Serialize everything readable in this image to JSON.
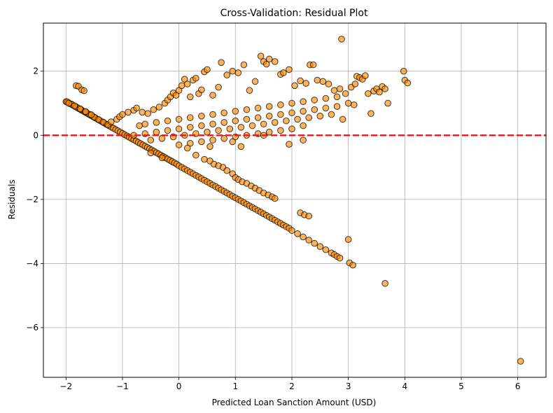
{
  "chart_data": {
    "type": "scatter",
    "title": "Cross-Validation: Residual Plot",
    "xlabel": "Predicted Loan Sanction Amount (USD)",
    "ylabel": "Residuals",
    "xlim": [
      -2.4,
      6.5
    ],
    "ylim": [
      -7.55,
      3.5
    ],
    "xticks": [
      -2,
      -1,
      0,
      1,
      2,
      3,
      4,
      5,
      6
    ],
    "yticks": [
      -6,
      -4,
      -2,
      0,
      2
    ],
    "xtick_labels": [
      "−2",
      "−1",
      "0",
      "1",
      "2",
      "3",
      "4",
      "5",
      "6"
    ],
    "ytick_labels": [
      "−6",
      "−4",
      "−2",
      "0",
      "2"
    ],
    "grid": true,
    "reference_line": {
      "y": 0,
      "style": "dashed",
      "color": "#e41a1c"
    },
    "marker": {
      "fill": "#ff8c00",
      "edge": "#000000",
      "alpha": 0.65
    },
    "series": [
      {
        "points": [
          [
            -2.0,
            1.05
          ],
          [
            -1.96,
            1.02
          ],
          [
            -1.92,
            0.98
          ],
          [
            -1.88,
            0.94
          ],
          [
            -1.84,
            0.9
          ],
          [
            -1.8,
            0.86
          ],
          [
            -1.76,
            0.82
          ],
          [
            -1.72,
            0.78
          ],
          [
            -1.68,
            0.74
          ],
          [
            -1.64,
            0.7
          ],
          [
            -1.6,
            0.66
          ],
          [
            -1.56,
            0.62
          ],
          [
            -1.52,
            0.58
          ],
          [
            -1.48,
            0.54
          ],
          [
            -1.44,
            0.5
          ],
          [
            -1.4,
            0.46
          ],
          [
            -1.36,
            0.42
          ],
          [
            -1.32,
            0.38
          ],
          [
            -1.28,
            0.34
          ],
          [
            -1.24,
            0.3
          ],
          [
            -1.2,
            0.26
          ],
          [
            -1.16,
            0.22
          ],
          [
            -1.12,
            0.18
          ],
          [
            -1.08,
            0.14
          ],
          [
            -1.04,
            0.1
          ],
          [
            -1.0,
            0.06
          ],
          [
            -0.96,
            0.02
          ],
          [
            -0.92,
            -0.02
          ],
          [
            -0.88,
            -0.06
          ],
          [
            -0.84,
            -0.1
          ],
          [
            -0.8,
            -0.14
          ],
          [
            -0.76,
            -0.18
          ],
          [
            -0.72,
            -0.22
          ],
          [
            -0.68,
            -0.26
          ],
          [
            -0.64,
            -0.3
          ],
          [
            -0.6,
            -0.34
          ],
          [
            -0.56,
            -0.38
          ],
          [
            -0.52,
            -0.42
          ],
          [
            -0.48,
            -0.46
          ],
          [
            -0.44,
            -0.5
          ],
          [
            -0.4,
            -0.54
          ],
          [
            -0.36,
            -0.58
          ],
          [
            -0.32,
            -0.62
          ],
          [
            -0.28,
            -0.66
          ],
          [
            -0.24,
            -0.7
          ],
          [
            -0.2,
            -0.74
          ],
          [
            -0.16,
            -0.78
          ],
          [
            -0.12,
            -0.82
          ],
          [
            -0.08,
            -0.86
          ],
          [
            -0.04,
            -0.9
          ],
          [
            0.0,
            -0.95
          ],
          [
            0.05,
            -1.0
          ],
          [
            0.1,
            -1.05
          ],
          [
            0.15,
            -1.1
          ],
          [
            0.2,
            -1.15
          ],
          [
            0.25,
            -1.2
          ],
          [
            0.3,
            -1.25
          ],
          [
            0.35,
            -1.3
          ],
          [
            0.4,
            -1.35
          ],
          [
            0.45,
            -1.4
          ],
          [
            0.5,
            -1.45
          ],
          [
            0.55,
            -1.5
          ],
          [
            0.6,
            -1.55
          ],
          [
            0.65,
            -1.6
          ],
          [
            0.7,
            -1.65
          ],
          [
            0.75,
            -1.7
          ],
          [
            0.8,
            -1.75
          ],
          [
            0.85,
            -1.8
          ],
          [
            0.9,
            -1.85
          ],
          [
            0.95,
            -1.9
          ],
          [
            1.0,
            -1.95
          ],
          [
            1.05,
            -2.0
          ],
          [
            1.1,
            -2.05
          ],
          [
            1.15,
            -2.1
          ],
          [
            1.2,
            -2.15
          ],
          [
            1.25,
            -2.2
          ],
          [
            1.3,
            -2.25
          ],
          [
            1.35,
            -2.3
          ],
          [
            1.4,
            -2.35
          ],
          [
            1.45,
            -2.4
          ],
          [
            1.5,
            -2.45
          ],
          [
            1.55,
            -2.5
          ],
          [
            1.6,
            -2.55
          ],
          [
            1.65,
            -2.6
          ],
          [
            1.7,
            -2.65
          ],
          [
            1.75,
            -2.7
          ],
          [
            1.8,
            -2.75
          ],
          [
            1.85,
            -2.8
          ],
          [
            1.9,
            -2.85
          ],
          [
            1.95,
            -2.9
          ],
          [
            2.0,
            -2.97
          ],
          [
            2.1,
            -3.07
          ],
          [
            2.2,
            -3.17
          ],
          [
            2.3,
            -3.27
          ],
          [
            2.4,
            -3.37
          ],
          [
            2.5,
            -3.47
          ],
          [
            2.6,
            -3.57
          ],
          [
            2.7,
            -3.67
          ],
          [
            2.75,
            -3.72
          ],
          [
            2.8,
            -3.78
          ],
          [
            2.85,
            -3.83
          ],
          [
            -0.5,
            -0.55
          ],
          [
            -0.3,
            -0.7
          ],
          [
            0.3,
            -0.62
          ],
          [
            0.45,
            -0.75
          ],
          [
            0.55,
            -0.8
          ],
          [
            0.62,
            -0.9
          ],
          [
            0.7,
            -0.95
          ],
          [
            0.78,
            -1.0
          ],
          [
            0.85,
            -1.1
          ],
          [
            0.95,
            -1.2
          ],
          [
            1.0,
            -1.32
          ],
          [
            1.05,
            -1.38
          ],
          [
            1.12,
            -1.45
          ],
          [
            1.2,
            -1.5
          ],
          [
            1.28,
            -1.58
          ],
          [
            1.35,
            -1.65
          ],
          [
            1.42,
            -1.72
          ],
          [
            1.5,
            -1.8
          ],
          [
            1.58,
            -1.86
          ],
          [
            1.65,
            -1.92
          ],
          [
            1.7,
            -1.97
          ],
          [
            2.15,
            -2.42
          ],
          [
            2.22,
            -2.48
          ],
          [
            2.3,
            -2.52
          ],
          [
            -1.98,
            1.04
          ],
          [
            -1.9,
            0.97
          ],
          [
            -1.82,
            0.89
          ],
          [
            -1.74,
            0.81
          ],
          [
            -1.66,
            0.73
          ],
          [
            -1.58,
            0.65
          ],
          [
            -1.5,
            0.57
          ],
          [
            -1.42,
            0.49
          ],
          [
            -1.34,
            0.41
          ],
          [
            -1.26,
            0.33
          ],
          [
            -1.95,
            1.0
          ],
          [
            -1.85,
            0.92
          ],
          [
            -1.75,
            0.83
          ],
          [
            -1.65,
            0.74
          ],
          [
            -1.55,
            0.64
          ],
          [
            -1.82,
            1.55
          ],
          [
            -1.78,
            1.53
          ],
          [
            -1.72,
            1.42
          ],
          [
            -1.68,
            1.39
          ],
          [
            -1.2,
            0.42
          ],
          [
            -1.1,
            0.5
          ],
          [
            -1.05,
            0.58
          ],
          [
            -1.0,
            0.65
          ],
          [
            -0.9,
            0.72
          ],
          [
            -0.8,
            0.78
          ],
          [
            -0.75,
            0.85
          ],
          [
            -0.65,
            0.72
          ],
          [
            -0.55,
            0.68
          ],
          [
            -0.45,
            0.8
          ],
          [
            -0.35,
            0.88
          ],
          [
            -0.25,
            1.0
          ],
          [
            -0.2,
            1.1
          ],
          [
            -0.15,
            1.2
          ],
          [
            -0.1,
            1.32
          ],
          [
            -0.05,
            1.25
          ],
          [
            0.0,
            1.4
          ],
          [
            0.05,
            1.55
          ],
          [
            0.1,
            1.75
          ],
          [
            0.15,
            1.6
          ],
          [
            0.2,
            1.2
          ],
          [
            0.25,
            1.72
          ],
          [
            0.3,
            1.78
          ],
          [
            0.35,
            1.3
          ],
          [
            0.4,
            1.42
          ],
          [
            0.45,
            1.98
          ],
          [
            0.5,
            2.05
          ],
          [
            0.6,
            1.25
          ],
          [
            0.7,
            1.5
          ],
          [
            0.75,
            2.27
          ],
          [
            0.85,
            1.88
          ],
          [
            0.95,
            2.0
          ],
          [
            1.05,
            1.95
          ],
          [
            1.15,
            2.2
          ],
          [
            1.25,
            1.4
          ],
          [
            1.35,
            1.68
          ],
          [
            1.45,
            2.47
          ],
          [
            1.5,
            2.3
          ],
          [
            1.55,
            2.22
          ],
          [
            1.6,
            2.38
          ],
          [
            1.7,
            2.3
          ],
          [
            1.8,
            1.9
          ],
          [
            1.85,
            1.95
          ],
          [
            1.95,
            2.05
          ],
          [
            2.05,
            1.55
          ],
          [
            2.15,
            1.7
          ],
          [
            2.25,
            1.62
          ],
          [
            2.32,
            2.2
          ],
          [
            2.38,
            2.2
          ],
          [
            2.45,
            1.72
          ],
          [
            2.55,
            1.68
          ],
          [
            2.65,
            1.6
          ],
          [
            2.75,
            1.4
          ],
          [
            2.85,
            1.45
          ],
          [
            2.88,
            3.0
          ],
          [
            2.95,
            1.3
          ],
          [
            3.05,
            1.5
          ],
          [
            3.12,
            1.6
          ],
          [
            3.15,
            1.84
          ],
          [
            3.2,
            1.8
          ],
          [
            3.25,
            1.75
          ],
          [
            3.3,
            1.86
          ],
          [
            3.35,
            1.3
          ],
          [
            3.45,
            1.38
          ],
          [
            3.5,
            1.45
          ],
          [
            3.55,
            1.35
          ],
          [
            3.6,
            1.52
          ],
          [
            3.65,
            1.45
          ],
          [
            3.7,
            1.0
          ],
          [
            3.98,
            2.0
          ],
          [
            4.0,
            1.72
          ],
          [
            4.05,
            1.63
          ],
          [
            3.4,
            0.68
          ],
          [
            2.9,
            0.5
          ],
          [
            2.8,
            0.9
          ],
          [
            3.0,
            1.0
          ],
          [
            3.1,
            0.95
          ],
          [
            -0.7,
            0.3
          ],
          [
            -0.6,
            0.35
          ],
          [
            -0.4,
            0.4
          ],
          [
            -0.2,
            0.45
          ],
          [
            0.0,
            0.5
          ],
          [
            0.2,
            0.55
          ],
          [
            0.4,
            0.6
          ],
          [
            0.6,
            0.65
          ],
          [
            0.8,
            0.7
          ],
          [
            1.0,
            0.75
          ],
          [
            1.2,
            0.8
          ],
          [
            1.4,
            0.85
          ],
          [
            1.6,
            0.9
          ],
          [
            1.8,
            0.95
          ],
          [
            2.0,
            1.0
          ],
          [
            2.2,
            1.05
          ],
          [
            2.4,
            1.1
          ],
          [
            2.6,
            1.15
          ],
          [
            2.8,
            1.2
          ],
          [
            -0.8,
            0.0
          ],
          [
            -0.6,
            0.05
          ],
          [
            -0.4,
            0.1
          ],
          [
            -0.2,
            0.15
          ],
          [
            0.0,
            0.2
          ],
          [
            0.2,
            0.25
          ],
          [
            0.4,
            0.3
          ],
          [
            0.6,
            0.35
          ],
          [
            0.8,
            0.4
          ],
          [
            1.0,
            0.45
          ],
          [
            1.2,
            0.5
          ],
          [
            1.4,
            0.55
          ],
          [
            1.6,
            0.6
          ],
          [
            1.8,
            0.65
          ],
          [
            2.0,
            0.7
          ],
          [
            2.2,
            0.75
          ],
          [
            2.4,
            0.8
          ],
          [
            2.6,
            0.85
          ],
          [
            -0.5,
            -0.15
          ],
          [
            -0.3,
            -0.1
          ],
          [
            -0.1,
            -0.05
          ],
          [
            0.1,
            0.0
          ],
          [
            0.3,
            0.05
          ],
          [
            0.5,
            0.1
          ],
          [
            0.7,
            0.15
          ],
          [
            0.9,
            0.2
          ],
          [
            1.1,
            0.25
          ],
          [
            1.3,
            0.3
          ],
          [
            1.5,
            0.35
          ],
          [
            1.7,
            0.4
          ],
          [
            1.9,
            0.45
          ],
          [
            2.1,
            0.5
          ],
          [
            2.3,
            0.55
          ],
          [
            2.5,
            0.6
          ],
          [
            2.7,
            0.65
          ],
          [
            0.0,
            -0.3
          ],
          [
            0.2,
            -0.25
          ],
          [
            0.4,
            -0.2
          ],
          [
            0.6,
            -0.15
          ],
          [
            0.8,
            -0.1
          ],
          [
            1.0,
            -0.05
          ],
          [
            1.2,
            0.0
          ],
          [
            1.4,
            0.05
          ],
          [
            1.6,
            0.1
          ],
          [
            1.8,
            0.15
          ],
          [
            2.0,
            0.2
          ],
          [
            2.2,
            0.3
          ],
          [
            0.15,
            -0.4
          ],
          [
            0.55,
            -0.35
          ],
          [
            0.95,
            -0.2
          ],
          [
            1.1,
            -0.35
          ],
          [
            1.95,
            -0.28
          ],
          [
            2.2,
            -0.15
          ],
          [
            1.5,
            0.0
          ],
          [
            3.0,
            -3.25
          ],
          [
            3.02,
            -3.98
          ],
          [
            3.08,
            -4.05
          ],
          [
            3.65,
            -4.62
          ],
          [
            6.05,
            -7.05
          ]
        ]
      }
    ]
  }
}
